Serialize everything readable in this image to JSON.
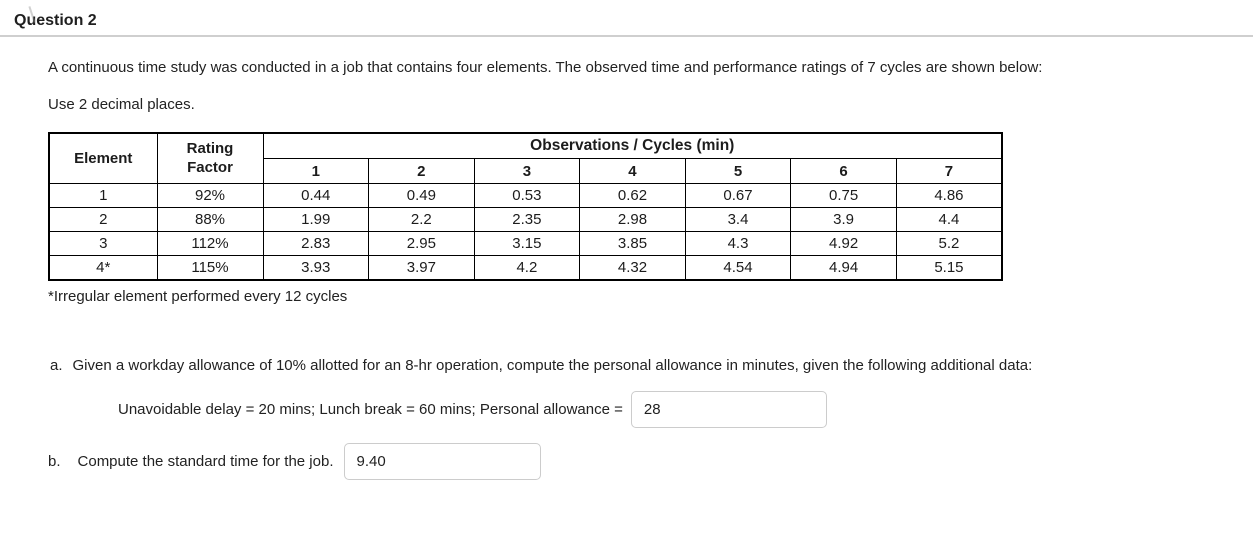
{
  "header": {
    "title": "Question 2"
  },
  "question": {
    "intro": "A continuous time study was conducted in a job that contains four elements. The observed time and performance ratings of 7 cycles are shown below:",
    "instruction": "Use 2 decimal places.",
    "footnote": "*Irregular element performed every 12 cycles"
  },
  "table": {
    "header": {
      "element": "Element",
      "rating_factor": "Rating Factor",
      "observations": "Observations / Cycles (min)",
      "cycles": [
        "1",
        "2",
        "3",
        "4",
        "5",
        "6",
        "7"
      ]
    },
    "rows": [
      {
        "element": "1",
        "rating": "92%",
        "observations": [
          "0.44",
          "0.49",
          "0.53",
          "0.62",
          "0.67",
          "0.75",
          "4.86"
        ]
      },
      {
        "element": "2",
        "rating": "88%",
        "observations": [
          "1.99",
          "2.2",
          "2.35",
          "2.98",
          "3.4",
          "3.9",
          "4.4"
        ]
      },
      {
        "element": "3",
        "rating": "112%",
        "observations": [
          "2.83",
          "2.95",
          "3.15",
          "3.85",
          "4.3",
          "4.92",
          "5.2"
        ]
      },
      {
        "element": "4*",
        "rating": "115%",
        "observations": [
          "3.93",
          "3.97",
          "4.2",
          "4.32",
          "4.54",
          "4.94",
          "5.15"
        ]
      }
    ]
  },
  "part_a": {
    "letter": "a.",
    "prompt": "Given a workday allowance of 10% allotted for an 8-hr operation, compute the personal allowance in minutes, given the following additional data:",
    "data_label": "Unavoidable delay = 20 mins; Lunch break = 60 mins; Personal allowance =",
    "answer_value": "28"
  },
  "part_b": {
    "letter": "b.",
    "prompt": "Compute the standard time for the job.",
    "answer_value": "9.40"
  },
  "colors": {
    "table_border": "#000000",
    "input_border": "#cccccc",
    "divider": "#cfcfcf",
    "text": "#222222"
  }
}
